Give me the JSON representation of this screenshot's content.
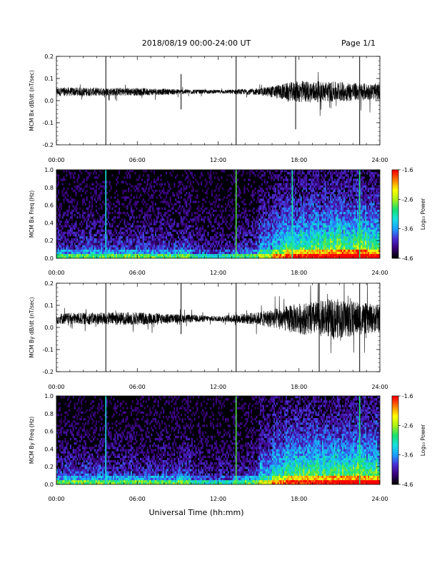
{
  "header": {
    "date_range": "2018/08/19   00:00-24:00 UT",
    "page": "Page 1/1"
  },
  "x_axis": {
    "label": "Universal Time (hh:mm)",
    "ticks": [
      "00:00",
      "06:00",
      "12:00",
      "18:00",
      "24:00"
    ]
  },
  "colorbar": {
    "label": "Log₁₀ Power",
    "ticks": [
      "-1.6",
      "-2.6",
      "-3.6",
      "-4.6"
    ],
    "range": [
      -4.6,
      -1.6
    ],
    "colors": [
      "#000000",
      "#3a007a",
      "#4a2fd6",
      "#1aa0ff",
      "#18e0e0",
      "#18e070",
      "#a8f018",
      "#ffff00",
      "#ff8000",
      "#ff0000"
    ]
  },
  "chart_data": [
    {
      "type": "line",
      "ylabel": "MCM Bx dB/dt (nT/sec)",
      "ylim": [
        -0.2,
        0.2
      ],
      "yticks": [
        "0.2",
        "0.1",
        "0.0",
        "-0.1",
        "-0.2"
      ],
      "xlim": [
        "00:00",
        "24:00"
      ],
      "baseline": 0.04,
      "noise_envelope": [
        {
          "time": "00:00",
          "amplitude": 0.02
        },
        {
          "time": "06:00",
          "amplitude": 0.018
        },
        {
          "time": "09:00",
          "amplitude": 0.012
        },
        {
          "time": "12:00",
          "amplitude": 0.008
        },
        {
          "time": "15:00",
          "amplitude": 0.015
        },
        {
          "time": "18:00",
          "amplitude": 0.05
        },
        {
          "time": "21:00",
          "amplitude": 0.045
        },
        {
          "time": "24:00",
          "amplitude": 0.035
        }
      ],
      "spikes": [
        {
          "time": "03:40",
          "min": -0.2,
          "max": 0.2
        },
        {
          "time": "09:15",
          "min": -0.04,
          "max": 0.12
        },
        {
          "time": "13:20",
          "min": -0.2,
          "max": 0.2
        },
        {
          "time": "17:45",
          "min": -0.13,
          "max": 0.2
        },
        {
          "time": "22:30",
          "min": -0.2,
          "max": 0.2
        }
      ]
    },
    {
      "type": "heatmap",
      "ylabel": "MCM Bx Freq (Hz)",
      "ylim": [
        0.0,
        1.0
      ],
      "yticks": [
        "1.0",
        "0.8",
        "0.6",
        "0.4",
        "0.2",
        "0.0"
      ],
      "xlim": [
        "00:00",
        "24:00"
      ],
      "value_label": "Log₁₀ Power",
      "activity_by_hour": [
        0.3,
        0.3,
        0.32,
        0.3,
        0.3,
        0.32,
        0.3,
        0.3,
        0.28,
        0.35,
        0.22,
        0.18,
        0.2,
        0.25,
        0.3,
        0.45,
        0.6,
        0.7,
        0.72,
        0.75,
        0.78,
        0.8,
        0.82,
        0.75
      ],
      "vertical_lines": [
        {
          "time": "03:40",
          "level": 0.45
        },
        {
          "time": "13:20",
          "level": 0.6
        },
        {
          "time": "17:30",
          "level": 0.5
        },
        {
          "time": "22:30",
          "level": 0.55
        }
      ]
    },
    {
      "type": "line",
      "ylabel": "MCM By dB/dt (nT/sec)",
      "ylim": [
        -0.2,
        0.2
      ],
      "yticks": [
        "0.2",
        "0.1",
        "0.0",
        "-0.1",
        "-0.2"
      ],
      "xlim": [
        "00:00",
        "24:00"
      ],
      "baseline": 0.04,
      "noise_envelope": [
        {
          "time": "00:00",
          "amplitude": 0.025
        },
        {
          "time": "06:00",
          "amplitude": 0.03
        },
        {
          "time": "09:00",
          "amplitude": 0.02
        },
        {
          "time": "12:00",
          "amplitude": 0.012
        },
        {
          "time": "15:00",
          "amplitude": 0.03
        },
        {
          "time": "18:00",
          "amplitude": 0.07
        },
        {
          "time": "21:00",
          "amplitude": 0.09
        },
        {
          "time": "24:00",
          "amplitude": 0.06
        }
      ],
      "spikes": [
        {
          "time": "03:40",
          "min": -0.2,
          "max": 0.2
        },
        {
          "time": "09:15",
          "min": -0.03,
          "max": 0.2
        },
        {
          "time": "13:20",
          "min": -0.2,
          "max": 0.2
        },
        {
          "time": "19:30",
          "min": -0.2,
          "max": 0.2
        },
        {
          "time": "22:30",
          "min": -0.2,
          "max": 0.2
        }
      ]
    },
    {
      "type": "heatmap",
      "ylabel": "MCM By Freq (Hz)",
      "ylim": [
        0.0,
        1.0
      ],
      "yticks": [
        "1.0",
        "0.8",
        "0.6",
        "0.4",
        "0.2",
        "0.0"
      ],
      "xlim": [
        "00:00",
        "24:00"
      ],
      "value_label": "Log₁₀ Power",
      "activity_by_hour": [
        0.32,
        0.32,
        0.33,
        0.32,
        0.3,
        0.33,
        0.32,
        0.3,
        0.28,
        0.35,
        0.22,
        0.18,
        0.2,
        0.25,
        0.3,
        0.45,
        0.62,
        0.72,
        0.72,
        0.74,
        0.76,
        0.78,
        0.8,
        0.75
      ],
      "vertical_lines": [
        {
          "time": "03:40",
          "level": 0.45
        },
        {
          "time": "13:20",
          "level": 0.6
        },
        {
          "time": "22:30",
          "level": 0.55
        }
      ]
    }
  ]
}
